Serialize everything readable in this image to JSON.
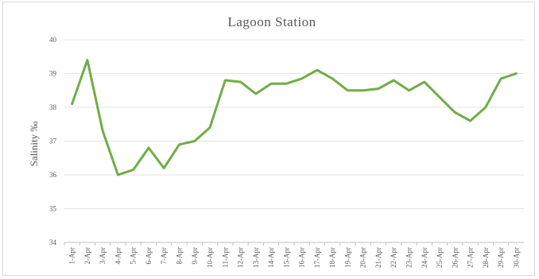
{
  "chart_data": {
    "type": "line",
    "title": "Lagoon Station",
    "xlabel": "",
    "ylabel": "Salinity ‰",
    "ylim": [
      34,
      40
    ],
    "yticks": [
      34,
      35,
      36,
      37,
      38,
      39,
      40
    ],
    "grid": true,
    "legend": "none",
    "categories": [
      "1-Apr",
      "2-Apr",
      "3-Apr",
      "4-Apr",
      "5-Apr",
      "6-Apr",
      "7-Apr",
      "8-Apr",
      "9-Apr",
      "10-Apr",
      "11-Apr",
      "12-Apr",
      "13-Apr",
      "14-Apr",
      "15-Apr",
      "16-Apr",
      "17-Apr",
      "18-Apr",
      "19-Apr",
      "20-Apr",
      "21-Apr",
      "22-Apr",
      "23-Apr",
      "24-Apr",
      "25-Apr",
      "26-Apr",
      "27-Apr",
      "28-Apr",
      "29-Apr",
      "30-Apr"
    ],
    "series": [
      {
        "color": "#70ad47",
        "values": [
          38.1,
          39.4,
          37.3,
          36.0,
          36.15,
          36.8,
          36.2,
          36.9,
          37.0,
          37.4,
          38.8,
          38.75,
          38.4,
          38.7,
          38.7,
          38.85,
          39.1,
          38.85,
          38.5,
          38.5,
          38.55,
          38.8,
          38.5,
          38.75,
          38.3,
          37.85,
          37.6,
          38.0,
          38.85,
          39.0
        ]
      }
    ]
  }
}
